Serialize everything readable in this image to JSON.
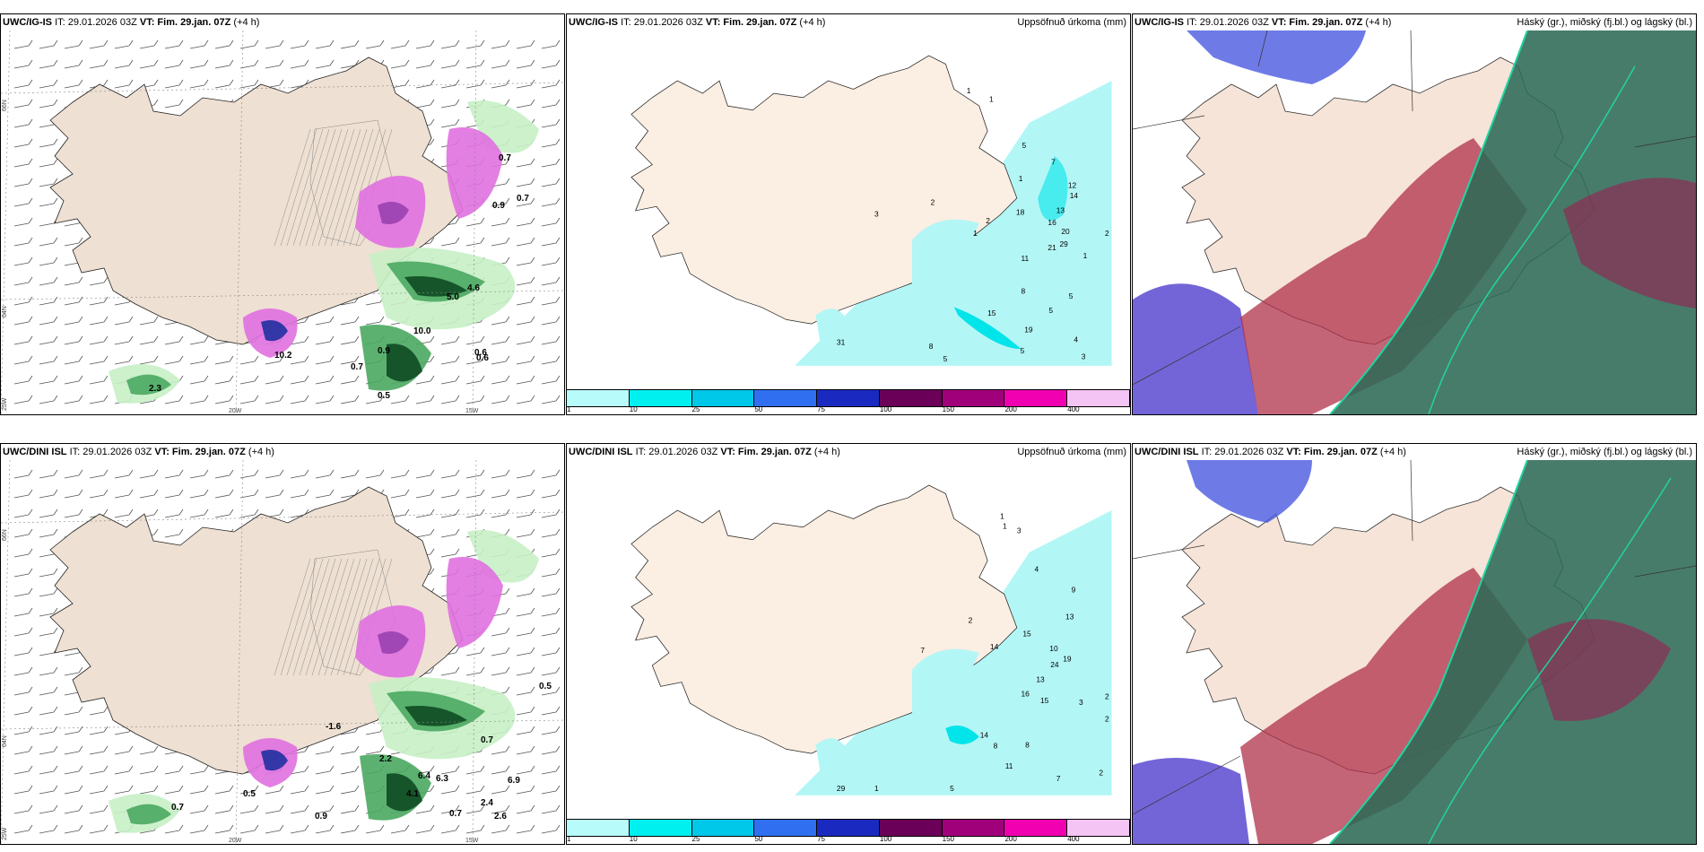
{
  "panels": [
    {
      "id": "p1",
      "model": "UWC/IG-IS",
      "it": "IT: 29.01.2026 03Z",
      "vt_label": "VT:",
      "vt": "Fim. 29.jan. 07Z",
      "lead": "(+4 h)",
      "right_title": ""
    },
    {
      "id": "p2",
      "model": "UWC/IG-IS",
      "it": "IT: 29.01.2026 03Z",
      "vt_label": "VT:",
      "vt": "Fim. 29.jan. 07Z",
      "lead": "(+4 h)",
      "right_title": "Uppsöfnuð úrkoma (mm)"
    },
    {
      "id": "p3",
      "model": "UWC/IG-IS",
      "it": "IT: 29.01.2026 03Z",
      "vt_label": "VT:",
      "vt": "Fim. 29.jan. 07Z",
      "lead": "(+4 h)",
      "right_title": "Háský (gr.), miðský (fj.bl.) og lágský (bl.)"
    },
    {
      "id": "p4",
      "model": "UWC/DINI ISL",
      "it": "IT: 29.01.2026 03Z",
      "vt_label": "VT:",
      "vt": "Fim. 29.jan. 07Z",
      "lead": "(+4 h)",
      "right_title": ""
    },
    {
      "id": "p5",
      "model": "UWC/DINI ISL",
      "it": "IT: 29.01.2026 03Z",
      "vt_label": "VT:",
      "vt": "Fim. 29.jan. 07Z",
      "lead": "(+4 h)",
      "right_title": "Uppsöfnuð úrkoma (mm)"
    },
    {
      "id": "p6",
      "model": "UWC/DINI ISL",
      "it": "IT: 29.01.2026 03Z",
      "vt_label": "VT:",
      "vt": "Fim. 29.jan. 07Z",
      "lead": "(+4 h)",
      "right_title": "Háský (gr.), miðský (fj.bl.) og lágský (bl.)"
    }
  ],
  "axis_labels": {
    "lat66": "66N",
    "lat64": "64N",
    "lon25": "25W",
    "lon20": "20W",
    "lon15": "15W"
  },
  "colorbar": {
    "ticks": [
      "1",
      "10",
      "25",
      "50",
      "75",
      "100",
      "150",
      "200",
      "400"
    ],
    "colors": [
      "#b8fbfb",
      "#00f0f0",
      "#00c8e8",
      "#3070f0",
      "#1a2ac0",
      "#6a0058",
      "#a0007a",
      "#f000b0",
      "#f4c4f4"
    ]
  },
  "map_colors": {
    "land": "#fbeee2",
    "sea": "#ffffff",
    "precip_light": "#b3f6f6",
    "precip_mid": "#00e4ea",
    "snow_pink": "#e070e0",
    "snow_purple": "#9a40b0",
    "green_light": "#c7efc5",
    "green_mid": "#4aa860",
    "green_dark": "#0e4b22",
    "blue_dark": "#2030a0",
    "cloud_high": "#2a6b4f",
    "cloud_mid": "#a03050",
    "cloud_low": "#5040c0"
  },
  "temp_labels_top": [
    "0.7",
    "0.9",
    "0.7",
    "0.6",
    "5.0",
    "4.6",
    "10.0",
    "0.9",
    "0.6",
    "0.5",
    "2.3",
    "10.2",
    "0.7"
  ],
  "temp_labels_bottom": [
    "0.5",
    "0.7",
    "6.9",
    "6.4",
    "6.3",
    "4.1",
    "2.2",
    "-1.6",
    "0.5",
    "0.7",
    "0.9",
    "2.6",
    "0.7",
    "2.4"
  ],
  "precip_labels_top": [
    "1",
    "1",
    "5",
    "1",
    "3",
    "2",
    "1",
    "2",
    "18",
    "11",
    "1",
    "7",
    "14",
    "13",
    "12",
    "16",
    "20",
    "21",
    "29",
    "8",
    "15",
    "19",
    "5",
    "4",
    "3",
    "5",
    "5",
    "8",
    "5",
    "2",
    "31"
  ],
  "precip_labels_bottom": [
    "1",
    "1",
    "3",
    "4",
    "9",
    "13",
    "15",
    "10",
    "24",
    "19",
    "13",
    "16",
    "15",
    "2",
    "3",
    "2",
    "2",
    "7",
    "14",
    "14",
    "8",
    "8",
    "11",
    "7",
    "1",
    "5",
    "29",
    "2"
  ]
}
